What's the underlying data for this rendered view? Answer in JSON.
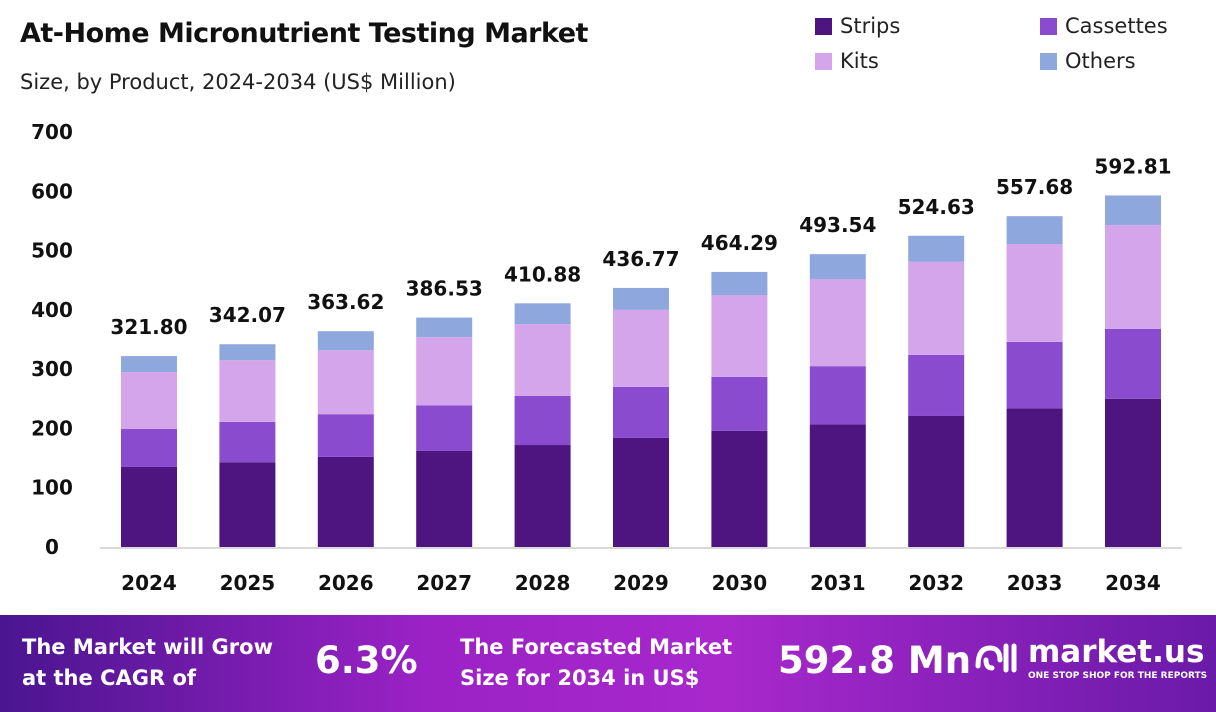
{
  "chart_data": {
    "type": "bar",
    "stacked": true,
    "title": "At-Home Micronutrient Testing Market",
    "subtitle": "Size, by Product, 2024-2034 (US$ Million)",
    "categories": [
      "2024",
      "2025",
      "2026",
      "2027",
      "2028",
      "2029",
      "2030",
      "2031",
      "2032",
      "2033",
      "2034"
    ],
    "series": [
      {
        "name": "Strips",
        "color": "#4e1580",
        "values": [
          135,
          143,
          152,
          162,
          172,
          184,
          196,
          207,
          221,
          234,
          250
        ]
      },
      {
        "name": "Cassettes",
        "color": "#8a4bcf",
        "values": [
          64,
          68,
          72,
          77,
          83,
          86,
          91,
          98,
          103,
          112,
          118
        ]
      },
      {
        "name": "Kits",
        "color": "#d4a5ea",
        "values": [
          96,
          104,
          108,
          115,
          121,
          130,
          138,
          147,
          157,
          165,
          175
        ]
      },
      {
        "name": "Others",
        "color": "#8ea7dc",
        "values": [
          27,
          27,
          32,
          33,
          35,
          37,
          39,
          42,
          44,
          47,
          50
        ]
      }
    ],
    "totals": [
      "321.80",
      "342.07",
      "363.62",
      "386.53",
      "410.88",
      "436.77",
      "464.29",
      "493.54",
      "524.63",
      "557.68",
      "592.81"
    ],
    "ylim": [
      0,
      700
    ],
    "yticks": [
      0,
      100,
      200,
      300,
      400,
      500,
      600,
      700
    ],
    "grid": false,
    "legend_position": "top-right"
  },
  "banner": {
    "cagr_text_1": "The Market will Grow",
    "cagr_text_2": "at the CAGR of",
    "cagr_value": "6.3%",
    "forecast_text_1": "The Forecasted Market",
    "forecast_text_2": "Size for 2034 in US$",
    "forecast_value": "592.8 Mn",
    "logo_name": "market.us",
    "logo_tagline": "ONE STOP SHOP FOR THE REPORTS"
  }
}
